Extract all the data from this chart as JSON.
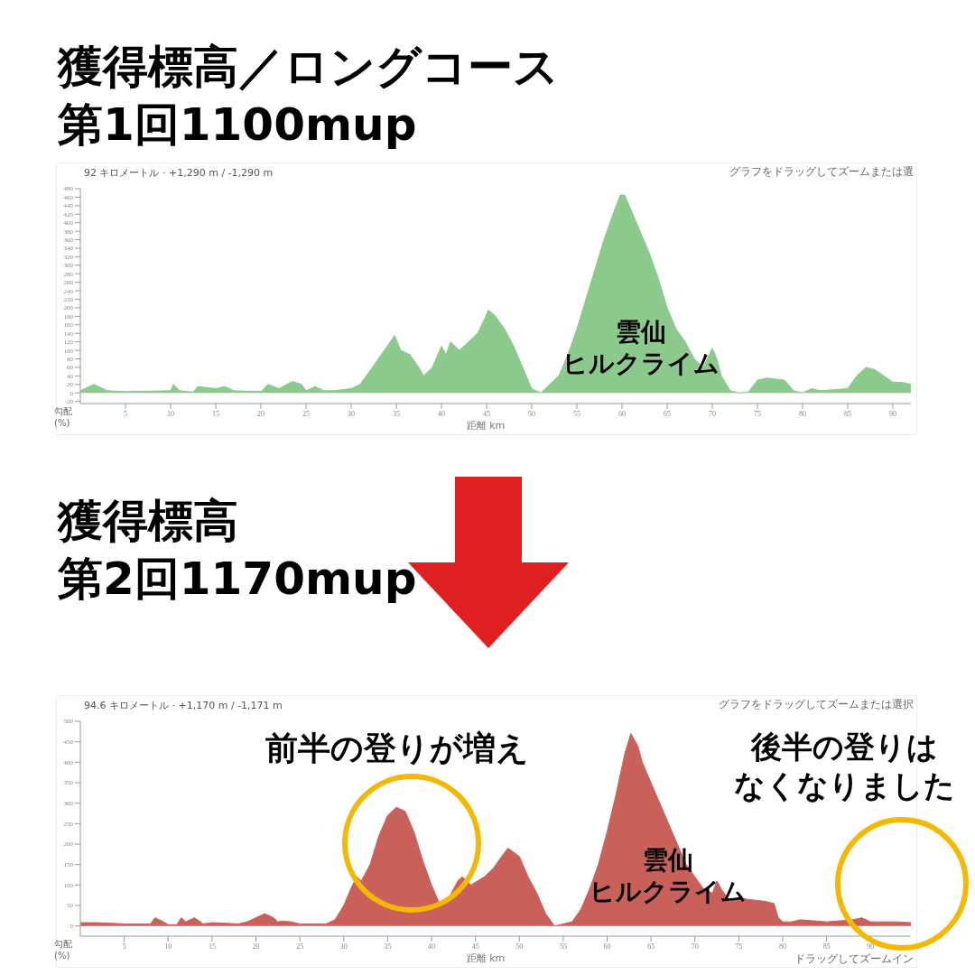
{
  "chart_data": [
    {
      "type": "area",
      "title": "獲得標高／ロングコース第1回1100mup",
      "subtitle": "92 キロメートル · +1,290 m / -1,290 m",
      "xlabel": "距離 km",
      "annotations": [
        "グラフをドラッグしてズームまたは選",
        "雲仙ヒルクライム",
        "勾配\n(%)"
      ],
      "x": [
        0,
        1.5,
        3,
        5,
        10,
        10.3,
        11,
        12.5,
        13,
        15,
        16,
        17,
        20,
        20.8,
        22,
        23.5,
        24.5,
        25,
        26,
        27,
        28,
        30,
        31,
        32,
        33,
        34,
        34.8,
        35.5,
        36.5,
        37.5,
        38,
        39,
        40,
        40.5,
        41,
        42,
        43,
        44,
        44.8,
        45.2,
        46,
        47,
        48,
        49,
        50,
        51,
        52,
        53,
        54,
        55,
        56,
        57,
        58,
        59,
        59.8,
        60.3,
        61,
        62,
        63,
        64,
        65,
        66,
        67,
        68,
        69,
        70,
        70.5,
        71,
        72,
        73,
        74,
        75,
        76,
        78,
        79,
        80,
        81,
        82,
        85,
        86,
        87,
        88,
        89,
        90,
        91,
        92
      ],
      "series": [
        {
          "type": "area",
          "color": "#8cc98c",
          "values": [
            5,
            20,
            5,
            3,
            5,
            20,
            5,
            2,
            15,
            10,
            15,
            5,
            3,
            20,
            10,
            27,
            20,
            5,
            15,
            5,
            5,
            10,
            20,
            50,
            80,
            110,
            135,
            100,
            90,
            60,
            40,
            60,
            110,
            90,
            120,
            100,
            120,
            140,
            175,
            195,
            180,
            150,
            110,
            60,
            10,
            0,
            20,
            40,
            90,
            150,
            220,
            290,
            360,
            420,
            465,
            465,
            430,
            380,
            330,
            270,
            200,
            150,
            120,
            80,
            60,
            105,
            80,
            40,
            5,
            0,
            2,
            30,
            35,
            30,
            5,
            0,
            10,
            5,
            10,
            40,
            60,
            55,
            40,
            25,
            25,
            20
          ]
        }
      ],
      "xlim": [
        0,
        92
      ],
      "xticks": [
        5,
        10,
        15,
        20,
        25,
        30,
        35,
        40,
        45,
        50,
        55,
        60,
        65,
        70,
        75,
        80,
        85,
        90
      ],
      "ylim": [
        -25,
        480
      ],
      "yticks": [
        -20,
        0,
        20,
        40,
        60,
        80,
        100,
        120,
        140,
        160,
        180,
        200,
        220,
        240,
        260,
        280,
        300,
        320,
        340,
        360,
        380,
        400,
        420,
        440,
        460,
        480
      ]
    },
    {
      "type": "area",
      "title": "獲得標高第2回1170mup",
      "subtitle": "94.6 キロメートル · +1,170 m / -1,171 m",
      "xlabel": "距離 km",
      "annotations": [
        "グラフをドラッグしてズームまたは選択",
        "前半の登りが増え",
        "後半の登りはなくなりました",
        "雲仙ヒルクライム",
        "ドラッグしてズームイン",
        "勾配\n(%)"
      ],
      "x": [
        0,
        2,
        5,
        8,
        8.5,
        9.5,
        10,
        11,
        11.5,
        12,
        13,
        14,
        15,
        18,
        19,
        20,
        21,
        22,
        22.5,
        23,
        24,
        25,
        28,
        29,
        30,
        31,
        31.5,
        32,
        33,
        34,
        35,
        36,
        37,
        38,
        39,
        40,
        41,
        42,
        43,
        43.5,
        44.5,
        46,
        47,
        48,
        48.7,
        50,
        51,
        52,
        53,
        54,
        55,
        56,
        57,
        58,
        59,
        60,
        61,
        62,
        62.7,
        63.5,
        64,
        65,
        66,
        67,
        68,
        69,
        70,
        71,
        72,
        72.5,
        73,
        74,
        75,
        76,
        78,
        79,
        79.5,
        80,
        81,
        82,
        85,
        88,
        89,
        90,
        93,
        94.6
      ],
      "series": [
        {
          "type": "area",
          "color": "#c9605a",
          "values": [
            8,
            8,
            5,
            5,
            20,
            10,
            3,
            3,
            20,
            10,
            20,
            5,
            8,
            5,
            10,
            20,
            30,
            20,
            10,
            12,
            10,
            5,
            5,
            15,
            50,
            100,
            120,
            110,
            150,
            220,
            270,
            290,
            280,
            230,
            160,
            100,
            50,
            70,
            110,
            120,
            100,
            120,
            140,
            170,
            190,
            170,
            120,
            80,
            30,
            0,
            5,
            10,
            40,
            90,
            150,
            230,
            320,
            420,
            470,
            440,
            400,
            350,
            300,
            250,
            200,
            150,
            120,
            90,
            80,
            110,
            90,
            60,
            70,
            65,
            60,
            55,
            20,
            10,
            10,
            15,
            10,
            15,
            20,
            10,
            10,
            8
          ]
        }
      ],
      "xlim": [
        0,
        94.6
      ],
      "xticks": [
        5,
        10,
        15,
        20,
        25,
        30,
        35,
        40,
        45,
        50,
        55,
        60,
        65,
        70,
        75,
        80,
        85,
        90
      ],
      "ylim": [
        -25,
        500
      ],
      "yticks": [
        0,
        50,
        100,
        150,
        200,
        250,
        300,
        350,
        400,
        450,
        500
      ]
    }
  ]
}
